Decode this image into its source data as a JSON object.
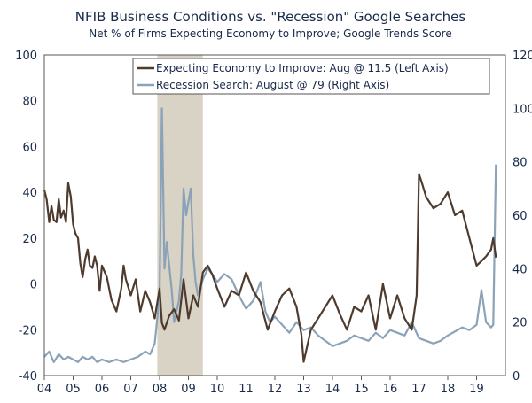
{
  "chart_data": {
    "type": "line",
    "title": "NFIB Business Conditions vs. \"Recession\" Google Searches",
    "subtitle": "Net % of Firms Expecting Economy to Improve; Google Trends Score",
    "x_ticks": [
      "04",
      "05",
      "06",
      "07",
      "08",
      "09",
      "10",
      "11",
      "12",
      "13",
      "14",
      "15",
      "16",
      "17",
      "18",
      "19"
    ],
    "x_range": [
      2004.0,
      2020.0
    ],
    "left_axis": {
      "range": [
        -40,
        100
      ],
      "ticks": [
        "100",
        "80",
        "60",
        "40",
        "20",
        "0",
        "-20",
        "-40"
      ]
    },
    "right_axis": {
      "range": [
        0,
        120
      ],
      "ticks": [
        "120",
        "100",
        "80",
        "60",
        "40",
        "20",
        "0"
      ]
    },
    "shaded_period": {
      "label": "Recession",
      "from": 2007.92,
      "to": 2009.5,
      "color": "#d8d3c4"
    },
    "series": [
      {
        "name": "Expecting Economy to Improve: Aug @ 11.5 (Left Axis)",
        "axis": "left",
        "color": "#4e3b2e",
        "x": [
          2004.0,
          2004.08,
          2004.17,
          2004.25,
          2004.33,
          2004.42,
          2004.5,
          2004.58,
          2004.67,
          2004.75,
          2004.83,
          2004.92,
          2005.0,
          2005.08,
          2005.17,
          2005.25,
          2005.33,
          2005.42,
          2005.5,
          2005.58,
          2005.67,
          2005.75,
          2005.83,
          2005.92,
          2006.0,
          2006.17,
          2006.33,
          2006.5,
          2006.67,
          2006.75,
          2006.83,
          2007.0,
          2007.17,
          2007.33,
          2007.5,
          2007.67,
          2007.83,
          2008.0,
          2008.08,
          2008.17,
          2008.33,
          2008.5,
          2008.67,
          2008.83,
          2009.0,
          2009.17,
          2009.33,
          2009.5,
          2009.67,
          2009.83,
          2010.0,
          2010.25,
          2010.5,
          2010.75,
          2011.0,
          2011.25,
          2011.5,
          2011.75,
          2012.0,
          2012.25,
          2012.5,
          2012.75,
          2012.92,
          2013.0,
          2013.25,
          2013.5,
          2013.75,
          2014.0,
          2014.25,
          2014.5,
          2014.75,
          2015.0,
          2015.25,
          2015.5,
          2015.75,
          2016.0,
          2016.25,
          2016.5,
          2016.75,
          2016.92,
          2017.0,
          2017.08,
          2017.25,
          2017.5,
          2017.75,
          2018.0,
          2018.25,
          2018.5,
          2018.75,
          2019.0,
          2019.17,
          2019.33,
          2019.5,
          2019.58,
          2019.67
        ],
        "values": [
          41,
          37,
          27,
          34,
          28,
          27,
          37,
          29,
          32,
          27,
          44,
          38,
          26,
          22,
          20,
          9,
          3,
          11,
          15,
          8,
          7,
          12,
          8,
          -3,
          8,
          3,
          -7,
          -12,
          -2,
          8,
          2,
          -5,
          2,
          -12,
          -3,
          -8,
          -15,
          -2,
          -17,
          -20,
          -14,
          -11,
          -16,
          2,
          -15,
          -5,
          -10,
          5,
          8,
          4,
          -2,
          -10,
          -3,
          -5,
          5,
          -3,
          -8,
          -20,
          -12,
          -5,
          -2,
          -10,
          -22,
          -34,
          -20,
          -15,
          -10,
          -5,
          -13,
          -20,
          -10,
          -12,
          -5,
          -20,
          0,
          -15,
          -5,
          -15,
          -20,
          -5,
          48,
          45,
          38,
          33,
          35,
          40,
          30,
          32,
          20,
          8,
          10,
          12,
          15,
          20,
          11.5
        ]
      },
      {
        "name": "Recession Search: August @ 79 (Right Axis)",
        "axis": "right",
        "color": "#8ba2b8",
        "x": [
          2004.0,
          2004.17,
          2004.33,
          2004.5,
          2004.67,
          2004.83,
          2005.0,
          2005.17,
          2005.33,
          2005.5,
          2005.67,
          2005.83,
          2006.0,
          2006.25,
          2006.5,
          2006.75,
          2007.0,
          2007.25,
          2007.5,
          2007.67,
          2007.83,
          2008.0,
          2008.08,
          2008.17,
          2008.25,
          2008.42,
          2008.5,
          2008.67,
          2008.75,
          2008.83,
          2008.92,
          2009.0,
          2009.08,
          2009.17,
          2009.25,
          2009.33,
          2009.5,
          2009.67,
          2009.83,
          2010.0,
          2010.25,
          2010.5,
          2010.75,
          2011.0,
          2011.25,
          2011.5,
          2011.67,
          2011.83,
          2012.0,
          2012.5,
          2012.75,
          2013.0,
          2013.25,
          2013.5,
          2013.75,
          2014.0,
          2014.25,
          2014.5,
          2014.75,
          2015.0,
          2015.25,
          2015.5,
          2015.75,
          2016.0,
          2016.25,
          2016.5,
          2016.75,
          2017.0,
          2017.5,
          2017.75,
          2018.0,
          2018.5,
          2018.75,
          2019.0,
          2019.17,
          2019.33,
          2019.5,
          2019.58,
          2019.67
        ],
        "values": [
          7,
          9,
          5,
          8,
          6,
          7,
          6,
          5,
          7,
          6,
          7,
          5,
          6,
          5,
          6,
          5,
          6,
          7,
          9,
          8,
          12,
          30,
          100,
          40,
          50,
          32,
          20,
          28,
          38,
          70,
          60,
          65,
          70,
          45,
          35,
          30,
          36,
          40,
          38,
          35,
          38,
          36,
          30,
          25,
          28,
          35,
          24,
          20,
          22,
          16,
          20,
          17,
          18,
          15,
          13,
          11,
          12,
          13,
          15,
          14,
          13,
          16,
          14,
          17,
          16,
          15,
          20,
          14,
          12,
          13,
          15,
          18,
          17,
          19,
          32,
          20,
          18,
          19,
          79
        ]
      }
    ]
  }
}
